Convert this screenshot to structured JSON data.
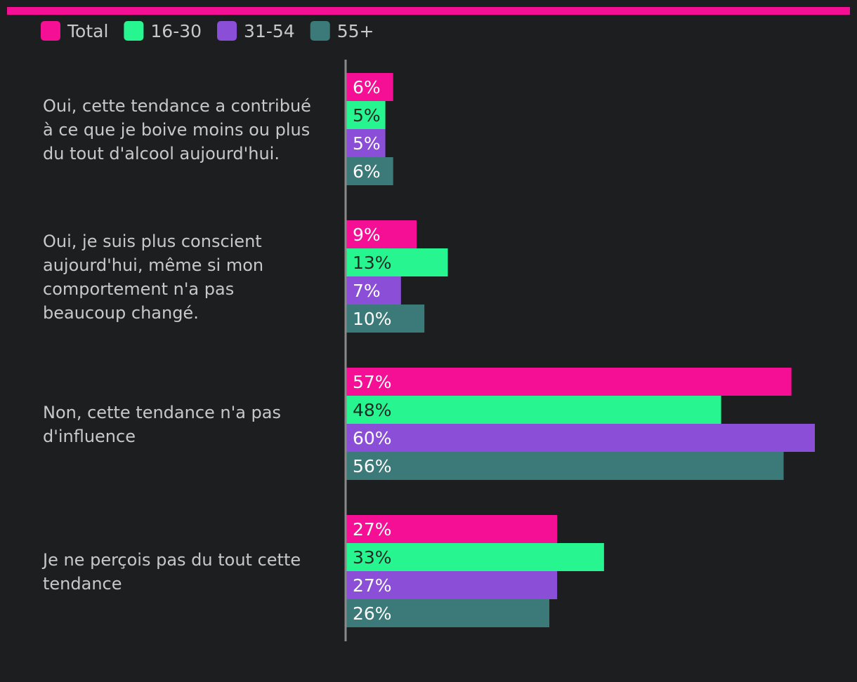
{
  "colors": {
    "background": "#1d1e20",
    "accent_bar": "#f50f94",
    "axis": "#8a8a8a",
    "category_text": "#c8c8c8",
    "outside_label_text": "#bdbdbd",
    "label_on_light": "#1e2a24",
    "label_on_dark": "#ffffff"
  },
  "chart_data": {
    "type": "bar",
    "orientation": "horizontal",
    "categories": [
      "Oui, cette tendance a contribué à ce que je boive moins ou plus du tout d'alcool aujourd'hui.",
      "Oui, je suis plus conscient aujourd'hui, même si mon comportement n'a pas beaucoup changé.",
      "Non, cette tendance n'a pas d'influence",
      "Je ne perçois pas du tout cette tendance"
    ],
    "category_lines": [
      [
        "Oui, cette tendance a contribué",
        "à ce que je boive moins ou plus",
        "du tout d'alcool aujourd'hui."
      ],
      [
        "Oui, je suis plus conscient",
        "aujourd'hui, même si mon",
        "comportement n'a pas",
        "beaucoup changé."
      ],
      [
        "Non, cette tendance n'a pas",
        "d'influence"
      ],
      [
        "Je ne perçois pas du tout cette",
        "tendance"
      ]
    ],
    "series": [
      {
        "name": "Total",
        "color": "#f50f94",
        "values": [
          6,
          9,
          57,
          27
        ],
        "labels": [
          "6%",
          "9%",
          "57%",
          "27%"
        ],
        "label_on": "dark"
      },
      {
        "name": "16-30",
        "color": "#27f590",
        "values": [
          5,
          13,
          48,
          33
        ],
        "labels": [
          "5%",
          "13%",
          "48%",
          "33%"
        ],
        "label_on": "light"
      },
      {
        "name": "31-54",
        "color": "#8a4fd6",
        "values": [
          5,
          7,
          60,
          27
        ],
        "labels": [
          "5%",
          "7%",
          "60%",
          "27%"
        ],
        "label_on": "dark"
      },
      {
        "name": "55+",
        "color": "#3b7a78",
        "values": [
          6,
          10,
          56,
          26
        ],
        "labels": [
          "6%",
          "10%",
          "56%",
          "26%"
        ],
        "label_on": "dark"
      }
    ],
    "xlim": [
      0,
      60
    ],
    "legend_position": "top-left",
    "grid": false
  }
}
